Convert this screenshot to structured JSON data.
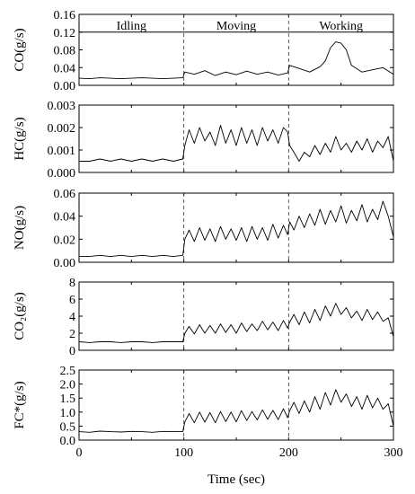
{
  "chart_data": [
    {
      "type": "line",
      "ylabel": "CO(g/s)",
      "yticks": [
        "0.00",
        "0.04",
        "0.08",
        "0.12",
        "0.16"
      ],
      "ylim": [
        0,
        0.16
      ],
      "xlim": [
        0,
        300
      ],
      "reference_line": 0.12,
      "phase_labels": [
        "Idling",
        "Moving",
        "Working"
      ],
      "series": [
        {
          "x": [
            0,
            10,
            20,
            30,
            40,
            50,
            60,
            70,
            80,
            90,
            99,
            101,
            110,
            120,
            130,
            140,
            150,
            160,
            170,
            180,
            190,
            199,
            201,
            210,
            220,
            230,
            235,
            240,
            245,
            250,
            255,
            260,
            270,
            280,
            290,
            300
          ],
          "values": [
            0.016,
            0.015,
            0.017,
            0.016,
            0.015,
            0.016,
            0.017,
            0.016,
            0.015,
            0.016,
            0.017,
            0.03,
            0.025,
            0.033,
            0.022,
            0.03,
            0.024,
            0.032,
            0.025,
            0.03,
            0.023,
            0.028,
            0.045,
            0.038,
            0.03,
            0.042,
            0.055,
            0.085,
            0.098,
            0.095,
            0.08,
            0.045,
            0.03,
            0.035,
            0.04,
            0.025
          ]
        }
      ]
    },
    {
      "type": "line",
      "ylabel": "HC(g/s)",
      "yticks": [
        "0.000",
        "0.001",
        "0.002",
        "0.003"
      ],
      "ylim": [
        0,
        0.003
      ],
      "xlim": [
        0,
        300
      ],
      "series": [
        {
          "x": [
            0,
            10,
            20,
            30,
            40,
            50,
            60,
            70,
            80,
            90,
            99,
            101,
            105,
            110,
            115,
            120,
            125,
            130,
            135,
            140,
            145,
            150,
            155,
            160,
            165,
            170,
            175,
            180,
            185,
            190,
            195,
            199,
            201,
            205,
            210,
            215,
            220,
            225,
            230,
            235,
            240,
            245,
            250,
            255,
            260,
            265,
            270,
            275,
            280,
            285,
            290,
            295,
            300
          ],
          "values": [
            0.0005,
            0.0005,
            0.0006,
            0.0005,
            0.0006,
            0.0005,
            0.0006,
            0.0005,
            0.0006,
            0.0005,
            0.0006,
            0.0012,
            0.0019,
            0.0013,
            0.002,
            0.0014,
            0.0018,
            0.0012,
            0.0021,
            0.0013,
            0.0019,
            0.0012,
            0.002,
            0.0013,
            0.0019,
            0.0012,
            0.002,
            0.0014,
            0.0019,
            0.0013,
            0.002,
            0.0018,
            0.0012,
            0.0009,
            0.0005,
            0.0009,
            0.0007,
            0.0012,
            0.0008,
            0.0013,
            0.0009,
            0.0016,
            0.001,
            0.0013,
            0.0009,
            0.0014,
            0.001,
            0.0015,
            0.0009,
            0.0014,
            0.0011,
            0.0016,
            0.0005
          ]
        }
      ]
    },
    {
      "type": "line",
      "ylabel": "NO(g/s)",
      "yticks": [
        "0.00",
        "0.02",
        "0.04",
        "0.06"
      ],
      "ylim": [
        0,
        0.06
      ],
      "xlim": [
        0,
        300
      ],
      "series": [
        {
          "x": [
            0,
            10,
            20,
            30,
            40,
            50,
            60,
            70,
            80,
            90,
            99,
            101,
            105,
            110,
            115,
            120,
            125,
            130,
            135,
            140,
            145,
            150,
            155,
            160,
            165,
            170,
            175,
            180,
            185,
            190,
            195,
            199,
            201,
            205,
            210,
            215,
            220,
            225,
            230,
            235,
            240,
            245,
            250,
            255,
            260,
            265,
            270,
            275,
            280,
            285,
            290,
            295,
            300
          ],
          "values": [
            0.005,
            0.005,
            0.006,
            0.005,
            0.006,
            0.005,
            0.006,
            0.005,
            0.006,
            0.005,
            0.006,
            0.02,
            0.028,
            0.018,
            0.03,
            0.019,
            0.029,
            0.018,
            0.031,
            0.02,
            0.029,
            0.019,
            0.03,
            0.018,
            0.031,
            0.02,
            0.03,
            0.019,
            0.033,
            0.021,
            0.032,
            0.024,
            0.035,
            0.028,
            0.04,
            0.03,
            0.042,
            0.032,
            0.046,
            0.033,
            0.045,
            0.035,
            0.049,
            0.034,
            0.045,
            0.036,
            0.05,
            0.035,
            0.046,
            0.037,
            0.053,
            0.04,
            0.022
          ]
        }
      ]
    },
    {
      "type": "line",
      "ylabel": "CO₂(g/s)",
      "yticks": [
        "0",
        "2",
        "4",
        "6",
        "8"
      ],
      "ylim": [
        0,
        8
      ],
      "xlim": [
        0,
        300
      ],
      "series": [
        {
          "x": [
            0,
            10,
            20,
            30,
            40,
            50,
            60,
            70,
            80,
            90,
            99,
            101,
            105,
            110,
            115,
            120,
            125,
            130,
            135,
            140,
            145,
            150,
            155,
            160,
            165,
            170,
            175,
            180,
            185,
            190,
            195,
            199,
            201,
            205,
            210,
            215,
            220,
            225,
            230,
            235,
            240,
            245,
            250,
            255,
            260,
            265,
            270,
            275,
            280,
            285,
            290,
            295,
            300
          ],
          "values": [
            1.0,
            0.9,
            1.0,
            1.0,
            0.9,
            1.0,
            1.0,
            0.9,
            1.0,
            1.0,
            1.0,
            2.0,
            2.8,
            1.9,
            3.0,
            2.0,
            2.9,
            2.0,
            3.1,
            2.1,
            3.0,
            2.0,
            3.2,
            2.2,
            3.1,
            2.3,
            3.4,
            2.4,
            3.3,
            2.3,
            3.5,
            2.6,
            3.3,
            4.2,
            3.0,
            4.5,
            3.2,
            4.8,
            3.5,
            5.2,
            4.0,
            5.5,
            4.2,
            5.0,
            3.8,
            4.6,
            3.5,
            4.8,
            3.6,
            4.5,
            3.4,
            3.8,
            1.6
          ]
        }
      ]
    },
    {
      "type": "line",
      "ylabel": "FC*(g/s)",
      "yticks": [
        "0.0",
        "0.5",
        "1.0",
        "1.5",
        "2.0",
        "2.5"
      ],
      "ylim": [
        0,
        2.5
      ],
      "xlim": [
        0,
        300
      ],
      "xticks": [
        "0",
        "100",
        "200",
        "300"
      ],
      "xlabel": "Time (sec)",
      "series": [
        {
          "x": [
            0,
            10,
            20,
            30,
            40,
            50,
            60,
            70,
            80,
            90,
            99,
            101,
            105,
            110,
            115,
            120,
            125,
            130,
            135,
            140,
            145,
            150,
            155,
            160,
            165,
            170,
            175,
            180,
            185,
            190,
            195,
            199,
            201,
            205,
            210,
            215,
            220,
            225,
            230,
            235,
            240,
            245,
            250,
            255,
            260,
            265,
            270,
            275,
            280,
            285,
            290,
            295,
            300
          ],
          "values": [
            0.3,
            0.28,
            0.32,
            0.3,
            0.29,
            0.31,
            0.3,
            0.28,
            0.31,
            0.3,
            0.3,
            0.65,
            0.95,
            0.62,
            1.0,
            0.64,
            0.98,
            0.62,
            1.02,
            0.66,
            1.0,
            0.65,
            1.05,
            0.7,
            1.02,
            0.72,
            1.08,
            0.74,
            1.06,
            0.73,
            1.12,
            0.8,
            1.05,
            1.35,
            0.95,
            1.4,
            1.0,
            1.55,
            1.1,
            1.7,
            1.25,
            1.8,
            1.35,
            1.65,
            1.2,
            1.55,
            1.1,
            1.6,
            1.15,
            1.5,
            1.1,
            1.3,
            0.5
          ]
        }
      ]
    }
  ]
}
